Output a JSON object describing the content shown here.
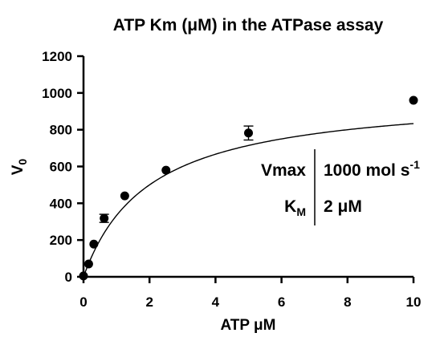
{
  "chart_data": {
    "type": "scatter",
    "title": "ATP Km (μM) in the ATPase assay",
    "xlabel": "ATP μM",
    "ylabel_main": "V",
    "ylabel_sub": "0",
    "xlim": [
      0,
      10
    ],
    "ylim": [
      0,
      1200
    ],
    "xticks": [
      0,
      2,
      4,
      6,
      8,
      10
    ],
    "yticks": [
      0,
      200,
      400,
      600,
      800,
      1000,
      1200
    ],
    "grid": false,
    "series": [
      {
        "x": [
          0,
          0.156,
          0.3125,
          0.625,
          1.25,
          2.5,
          5,
          10
        ],
        "y": [
          5,
          70,
          178,
          318,
          440,
          580,
          782,
          960
        ],
        "error": [
          0,
          0,
          0,
          22,
          0,
          0,
          38,
          0
        ]
      }
    ],
    "fit": {
      "model": "michaelis-menten",
      "vmax": 1000,
      "km": 2
    },
    "annotation": {
      "row1_label": "Vmax",
      "row1_value": "1000 mol s",
      "row1_value_sup": "-1",
      "row2_label": "K",
      "row2_label_sub": "M",
      "row2_value": "2 μM"
    }
  }
}
